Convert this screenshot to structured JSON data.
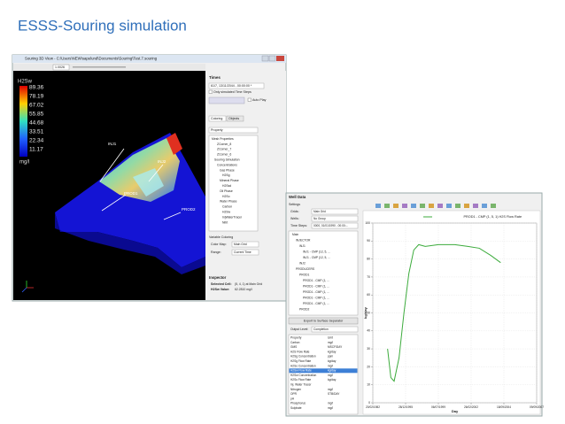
{
  "slide_title": "ESSS-Souring simulation",
  "view3d": {
    "window_title": "Souring 3D View - C:\\Users\\NEW\\sapelund\\Documents\\Souring\\Test.7.souring",
    "toolbar_value": "1.0026",
    "legend_title": "H2Sw",
    "legend_labels": [
      "89.36",
      "78.19",
      "67.02",
      "55.85",
      "44.68",
      "33.51",
      "22.34",
      "11.17"
    ],
    "legend_unit": "mg/l",
    "wells": [
      "INJ1",
      "INJ2",
      "PROD1",
      "PROD2"
    ]
  },
  "side_panel": {
    "times_label": "Times",
    "time_value": "61/7, 13/11/2044 - 00:00:00 *",
    "only_simulated": "Only simulated Time Steps",
    "auto_play": "Auto Play",
    "tabs": [
      "Coloring",
      "Objects"
    ],
    "property": "Property",
    "tree": [
      "Mesh Properties",
      "ZCorner_8",
      "ZCorner_7",
      "ZCorner_6",
      "Souring Simulation",
      "Concentrations",
      "Gas Phase",
      "H2Sg",
      "Mineral Phase",
      "H2Ssd",
      "Oil Phase",
      "H2So",
      "Water Phase",
      "Carbon",
      "H2Sw",
      "InjWaterTracer",
      "Nitrt"
    ],
    "variable_coloring": "Variable Coloring",
    "color_map_label": "Color Map:",
    "color_map_value": "Main Grid",
    "range_label": "Range:",
    "range_value": "Current Time",
    "inspector": "Inspector",
    "selected_cell_label": "Selected Cell:",
    "selected_cell_value": "(5, 4, 1) at Main Grid",
    "h2sw_label": "H2Sw Value:",
    "h2sw_value": "62.2810 mg/l"
  },
  "well_data": {
    "title": "Well Data",
    "settings": "Settings",
    "grids_label": "Grids:",
    "grids_value": "Main Grid",
    "wells_label": "Wells:",
    "wells_value": "No Group",
    "time_steps_label": "Time Steps:",
    "time_steps_value": "0000, 01/01/1990 - 00:00:...",
    "tree": [
      "Main",
      "INJECTOR",
      "INJ1",
      "INJ1 - CMP (12, 5, ...",
      "INJ1 - CMP (12, 5, ...",
      "INJ2",
      "PRODUCERS",
      "PROD1",
      "PROD1 - CMP (1, ...",
      "PROD1 - CMP (1, ...",
      "PROD1 - CMP (1, ...",
      "PROD1 - CMP (1, ...",
      "PROD1 - CMP (1, ...",
      "PROD2"
    ],
    "export_button": "Export to Surface Separator",
    "output_level_label": "Output Level:",
    "output_level_value": "Completion",
    "table": {
      "columns": [
        "Property",
        "Unit"
      ],
      "rows": [
        [
          "Carbon",
          "mg/l"
        ],
        [
          "GMS",
          "MSCF/DAY"
        ],
        [
          "H2S Flow Rate",
          "kg/day"
        ],
        [
          "H2Sg Concentration",
          "ppm"
        ],
        [
          "H2Sg Flow Rate",
          "kg/day"
        ],
        [
          "H2So Concentration",
          "mg/l"
        ],
        [
          "H2Sw Flow Rate",
          "kg/day"
        ],
        [
          "H2Sw Concentration",
          "mg/l"
        ],
        [
          "H2So Flow Rate",
          "kg/day"
        ],
        [
          "Inj. Water Tracer"
        ],
        [
          "Nitrogen",
          "mg/l"
        ],
        [
          "OPR",
          "STB/DAY"
        ],
        [
          "pH"
        ],
        [
          "Phosphorus",
          "mg/l"
        ],
        [
          "Sulphate",
          "mg/l"
        ]
      ]
    }
  },
  "chart_data": {
    "type": "line",
    "title": "PROD1 - CMP (1, 5, 1) H2S Flow Rate",
    "x_label": "Day",
    "y_label": "kg/day",
    "grid": true,
    "xlim": [
      0,
      10
    ],
    "xticks": [
      {
        "value": 0,
        "label": "20/02/1982"
      },
      {
        "value": 2,
        "label": "28/12/1995"
      },
      {
        "value": 4,
        "label": "06/07/1999"
      },
      {
        "value": 6,
        "label": "26/02/2002"
      },
      {
        "value": 8,
        "label": "18/09/2004"
      },
      {
        "value": 10,
        "label": "09/09/2007"
      }
    ],
    "ylim": [
      0,
      100
    ],
    "yticks": [
      0,
      10,
      20,
      30,
      40,
      50,
      60,
      70,
      80,
      90,
      100
    ],
    "series": [
      {
        "name": "PROD1 - CMP (1, 5, 1) H2S Flow Rate",
        "color": "#3cab3c",
        "x": [
          0.9,
          1.1,
          1.3,
          1.6,
          1.9,
          2.2,
          2.5,
          2.8,
          3.2,
          4,
          5,
          5.8,
          6.5,
          7.2,
          7.8
        ],
        "values": [
          30,
          14,
          12,
          25,
          50,
          72,
          85,
          88,
          87,
          88,
          88,
          87,
          86,
          82,
          78
        ]
      }
    ]
  }
}
